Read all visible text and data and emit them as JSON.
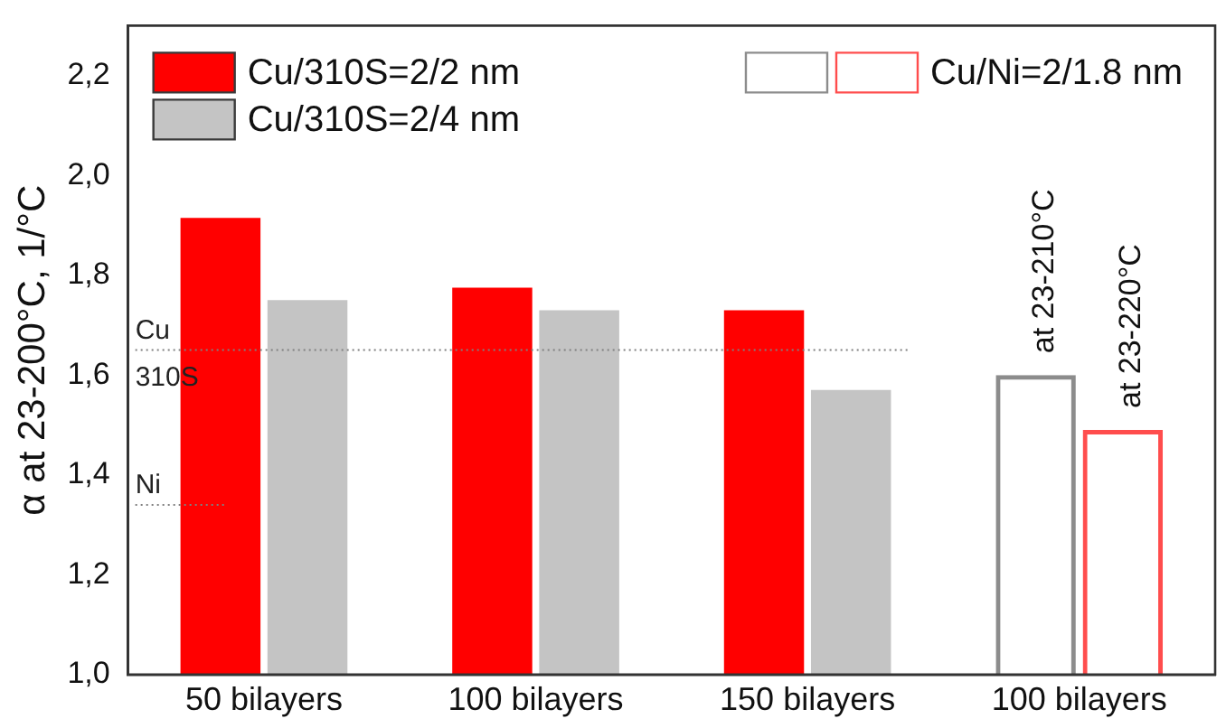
{
  "chart_data": {
    "type": "bar",
    "ylabel": "α at 23-200°C, 1/°C",
    "categories": [
      "50 bilayers",
      "100 bilayers",
      "150 bilayers",
      "100 bilayers"
    ],
    "series": [
      {
        "name": "Cu/310S=2/2 nm",
        "color": "#ff0000",
        "values": [
          1.915,
          1.775,
          1.73,
          null
        ]
      },
      {
        "name": "Cu/310S=2/4 nm",
        "color": "#c4c4c4",
        "values": [
          1.75,
          1.73,
          1.57,
          null
        ]
      },
      {
        "color": "#8c8c8c",
        "line_style": "solid",
        "values": [
          null,
          null,
          null,
          1.6
        ]
      },
      {
        "name": "Cu/Ni=2/1.8 nm",
        "color": "#ff4d4d",
        "line_style": "solid",
        "values": [
          null,
          null,
          null,
          1.49
        ]
      }
    ],
    "ylim": [
      1,
      2.3
    ],
    "yticks": [
      {
        "value": 1,
        "label": "1,0"
      },
      {
        "value": 1.2,
        "label": "1,2"
      },
      {
        "value": 1.4,
        "label": "1,4"
      },
      {
        "value": 1.6,
        "label": "1,6"
      },
      {
        "value": 1.8,
        "label": "1,8"
      },
      {
        "value": 2,
        "label": "2,0"
      },
      {
        "value": 2.2,
        "label": "2,2"
      }
    ],
    "ref_lines": [
      {
        "axis": "y",
        "value": 1.65,
        "label": "Cu 310S",
        "line_style": "dotted",
        "color": "#808080"
      },
      {
        "axis": "y",
        "value": 1.34,
        "label": "Ni",
        "line_style": "dotted",
        "color": "#808080"
      }
    ],
    "annotations": [
      "at 23-210°C",
      "at 23-220°C"
    ],
    "grid": false,
    "legend": "top"
  }
}
